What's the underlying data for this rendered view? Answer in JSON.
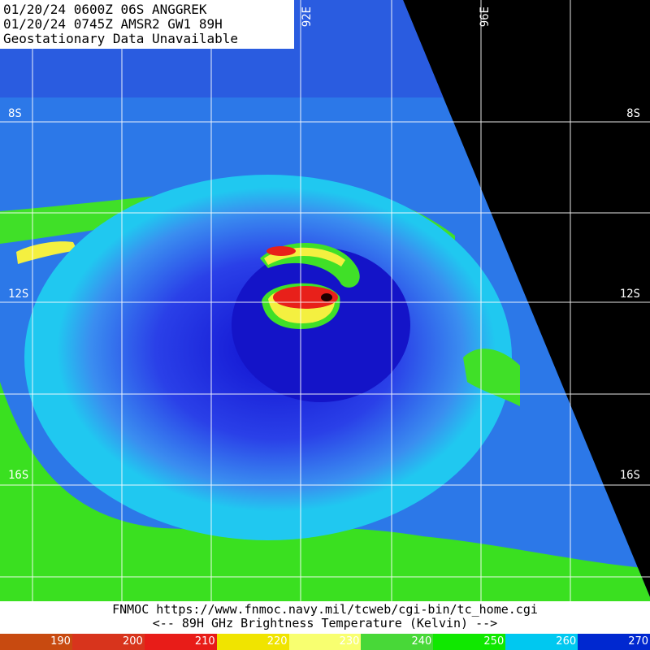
{
  "header": {
    "line1": "01/20/24 0600Z  06S ANGGREK",
    "line2": "01/20/24 0745Z  AMSR2 GW1 89H",
    "line3": "Geostationary Data Unavailable"
  },
  "grid": {
    "latitudes": [
      "8S",
      "12S",
      "16S"
    ],
    "longitudes": [
      "92E",
      "96E"
    ]
  },
  "footer": {
    "source": "FNMOC https://www.fnmoc.navy.mil/tcweb/cgi-bin/tc_home.cgi",
    "caption": "<--  89H GHz Brightness Temperature (Kelvin)  -->"
  },
  "colorbar": {
    "labels": [
      "190",
      "200",
      "210",
      "220",
      "230",
      "240",
      "250",
      "260",
      "270"
    ],
    "colors": [
      "#c84a10",
      "#d8341c",
      "#e81c18",
      "#f0e400",
      "#f8ff70",
      "#48d838",
      "#10e800",
      "#00c8f0",
      "#0028d0"
    ]
  },
  "colors": {
    "background": "#000000",
    "cold_core": "#e8201a",
    "moderate": "#2020d8",
    "warm": "#18c8f0",
    "land": "#38e020"
  }
}
